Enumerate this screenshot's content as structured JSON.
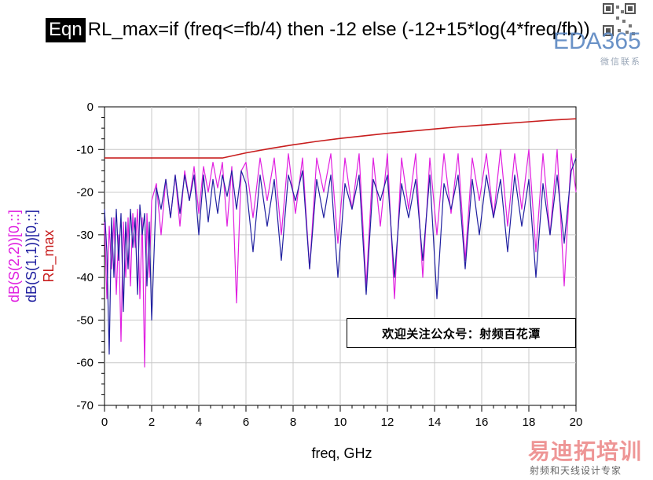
{
  "equation": {
    "badge": "Eqn",
    "text": "RL_max=if (freq<=fb/4) then -12  else (-12+15*log(4*freq/fb))"
  },
  "colors": {
    "s22": "#e020e0",
    "s11": "#2020a0",
    "rl_max": "#c81e1e",
    "grid": "#c8c8c8"
  },
  "notice": "欢迎关注公众号：射频百花潭",
  "watermarks": {
    "top_brand": "EDA365",
    "top_sub": "微信联系",
    "bottom_brand": "易迪拓培训",
    "bottom_sub": "射频和天线设计专家"
  },
  "chart_data": {
    "type": "line",
    "xlabel": "freq, GHz",
    "ylabels": [
      "dB(S(2,2))[0,::]",
      "dB(S(1,1))[0,::]",
      "RL_max"
    ],
    "xlim": [
      0,
      20
    ],
    "ylim": [
      -70,
      0
    ],
    "xticks": [
      0,
      2,
      4,
      6,
      8,
      10,
      12,
      14,
      16,
      18,
      20
    ],
    "yticks": [
      0,
      -10,
      -20,
      -30,
      -40,
      -50,
      -60,
      -70
    ],
    "grid": true,
    "series": [
      {
        "name": "RL_max",
        "x": [
          0,
          1,
          2,
          3,
          4,
          5,
          6,
          7,
          8,
          9,
          10,
          11,
          12,
          13,
          14,
          15,
          16,
          17,
          18,
          19,
          20
        ],
        "y": [
          -12,
          -12,
          -12,
          -12,
          -12,
          -12,
          -10.8,
          -9.8,
          -8.9,
          -8.1,
          -7.4,
          -6.8,
          -6.2,
          -5.7,
          -5.2,
          -4.7,
          -4.3,
          -3.9,
          -3.5,
          -3.1,
          -2.8
        ]
      },
      {
        "name": "dB(S(2,2))[0,::]",
        "x": [
          0,
          0.1,
          0.2,
          0.3,
          0.4,
          0.5,
          0.6,
          0.7,
          0.8,
          0.9,
          1.0,
          1.1,
          1.2,
          1.3,
          1.4,
          1.5,
          1.6,
          1.7,
          1.8,
          1.9,
          2.0,
          2.2,
          2.4,
          2.6,
          2.8,
          3.0,
          3.2,
          3.4,
          3.6,
          3.8,
          4.0,
          4.2,
          4.4,
          4.6,
          4.8,
          5.0,
          5.2,
          5.4,
          5.6,
          5.8,
          6.0,
          6.3,
          6.6,
          6.9,
          7.2,
          7.5,
          7.8,
          8.1,
          8.4,
          8.7,
          9.0,
          9.3,
          9.6,
          9.9,
          10.2,
          10.5,
          10.8,
          11.1,
          11.4,
          11.7,
          12.0,
          12.3,
          12.6,
          12.9,
          13.2,
          13.5,
          13.8,
          14.1,
          14.4,
          14.7,
          15.0,
          15.3,
          15.6,
          15.9,
          16.2,
          16.5,
          16.8,
          17.1,
          17.4,
          17.7,
          18.0,
          18.3,
          18.6,
          18.9,
          19.2,
          19.5,
          19.8,
          20.0
        ],
        "y": [
          -27,
          -45,
          -28,
          -38,
          -26,
          -44,
          -30,
          -55,
          -27,
          -40,
          -26,
          -42,
          -25,
          -33,
          -24,
          -45,
          -26,
          -61,
          -25,
          -40,
          -22,
          -18,
          -30,
          -17,
          -26,
          -16,
          -28,
          -15,
          -22,
          -14,
          -25,
          -14,
          -20,
          -13,
          -19,
          -13,
          -28,
          -14,
          -46,
          -15,
          -13,
          -26,
          -12,
          -22,
          -12,
          -30,
          -11,
          -25,
          -12,
          -38,
          -12,
          -20,
          -11,
          -32,
          -12,
          -24,
          -11,
          -42,
          -12,
          -28,
          -11,
          -45,
          -12,
          -24,
          -11,
          -40,
          -12,
          -30,
          -11,
          -25,
          -11,
          -36,
          -12,
          -22,
          -11,
          -26,
          -10,
          -28,
          -11,
          -24,
          -10,
          -34,
          -11,
          -30,
          -10,
          -42,
          -11,
          -20
        ]
      },
      {
        "name": "dB(S(1,1))[0,::]",
        "x": [
          0,
          0.1,
          0.2,
          0.3,
          0.4,
          0.5,
          0.6,
          0.7,
          0.8,
          0.9,
          1.0,
          1.1,
          1.2,
          1.3,
          1.4,
          1.5,
          1.6,
          1.7,
          1.8,
          1.9,
          2.0,
          2.2,
          2.4,
          2.6,
          2.8,
          3.0,
          3.2,
          3.4,
          3.6,
          3.8,
          4.0,
          4.2,
          4.4,
          4.6,
          4.8,
          5.0,
          5.2,
          5.4,
          5.6,
          5.8,
          6.0,
          6.3,
          6.6,
          6.9,
          7.2,
          7.5,
          7.8,
          8.1,
          8.4,
          8.7,
          9.0,
          9.3,
          9.6,
          9.9,
          10.2,
          10.5,
          10.8,
          11.1,
          11.4,
          11.7,
          12.0,
          12.3,
          12.6,
          12.9,
          13.2,
          13.5,
          13.8,
          14.1,
          14.4,
          14.7,
          15.0,
          15.3,
          15.6,
          15.9,
          16.2,
          16.5,
          16.8,
          17.1,
          17.4,
          17.7,
          18.0,
          18.3,
          18.6,
          18.9,
          19.2,
          19.5,
          19.8,
          20.0
        ],
        "y": [
          -24,
          -34,
          -58,
          -26,
          -40,
          -24,
          -36,
          -25,
          -48,
          -27,
          -38,
          -24,
          -33,
          -26,
          -44,
          -23,
          -30,
          -25,
          -42,
          -27,
          -50,
          -19,
          -24,
          -17,
          -26,
          -16,
          -25,
          -16,
          -22,
          -16,
          -30,
          -16,
          -27,
          -17,
          -25,
          -16,
          -21,
          -15,
          -24,
          -15,
          -18,
          -34,
          -16,
          -28,
          -17,
          -36,
          -16,
          -22,
          -15,
          -38,
          -17,
          -26,
          -16,
          -40,
          -18,
          -24,
          -16,
          -44,
          -17,
          -22,
          -16,
          -40,
          -18,
          -26,
          -17,
          -36,
          -16,
          -45,
          -18,
          -24,
          -16,
          -38,
          -17,
          -30,
          -16,
          -26,
          -17,
          -34,
          -16,
          -28,
          -17,
          -40,
          -18,
          -30,
          -16,
          -32,
          -15,
          -12
        ]
      }
    ]
  }
}
